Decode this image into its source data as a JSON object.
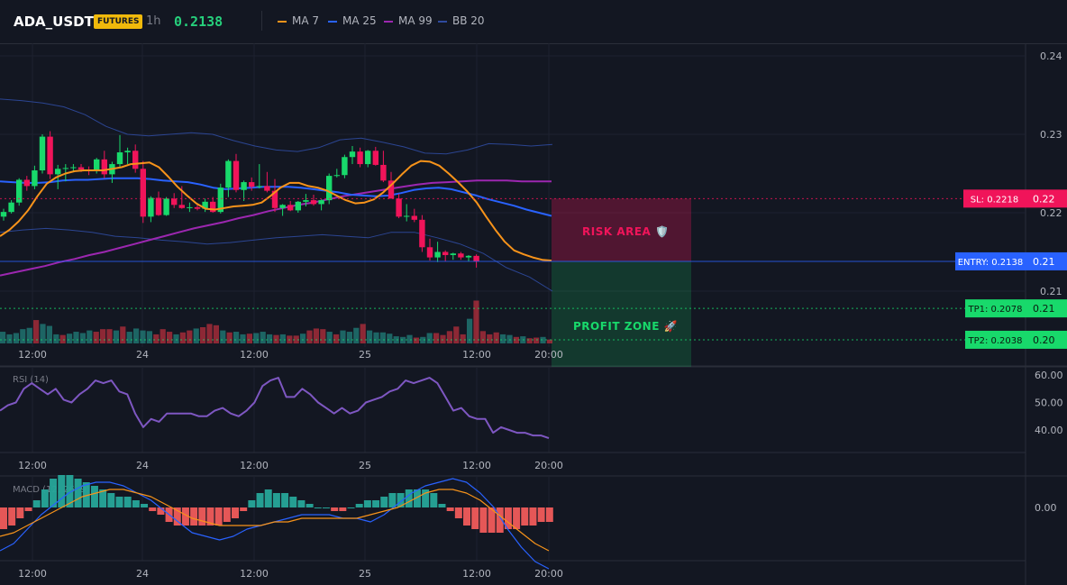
{
  "header": {
    "symbol": "ADA_USDT",
    "badge": "FUTURES",
    "timeframe": "1h",
    "price": "0.2138",
    "legend": [
      {
        "label": "MA 7",
        "color": "#f7931a"
      },
      {
        "label": "MA 25",
        "color": "#2962ff"
      },
      {
        "label": "MA 99",
        "color": "#9c27b0"
      },
      {
        "label": "BB 20",
        "color": "#2f4a9e"
      }
    ]
  },
  "colors": {
    "up": "#26a69a",
    "up_bright": "#18d96b",
    "down": "#f23645",
    "down_bright": "#f0145a",
    "background": "#131722"
  },
  "chart_data": [
    {
      "type": "candlestick",
      "title": "ADA_USDT 1h",
      "x_ticks": [
        "12:00",
        "24",
        "12:00",
        "25",
        "12:00",
        "20:00"
      ],
      "y_ticks": [
        "0.24",
        "0.23",
        "0.22",
        "0.21"
      ],
      "ylim": [
        0.2038,
        0.2417
      ],
      "candles_ohlc": [
        [
          0.2195,
          0.2205,
          0.219,
          0.2201
        ],
        [
          0.2201,
          0.2216,
          0.2199,
          0.2213
        ],
        [
          0.2213,
          0.2244,
          0.2209,
          0.2242
        ],
        [
          0.2242,
          0.2247,
          0.2228,
          0.2234
        ],
        [
          0.2234,
          0.226,
          0.223,
          0.2254
        ],
        [
          0.2254,
          0.23,
          0.225,
          0.2297
        ],
        [
          0.2297,
          0.2304,
          0.2243,
          0.2249
        ],
        [
          0.2249,
          0.2261,
          0.223,
          0.2256
        ],
        [
          0.2256,
          0.2262,
          0.224,
          0.2257
        ],
        [
          0.2257,
          0.2262,
          0.2252,
          0.2258
        ],
        [
          0.2258,
          0.2262,
          0.2252,
          0.2255
        ],
        [
          0.2255,
          0.2259,
          0.2248,
          0.2253
        ],
        [
          0.2253,
          0.227,
          0.225,
          0.2268
        ],
        [
          0.2268,
          0.2279,
          0.2244,
          0.2249
        ],
        [
          0.2249,
          0.2265,
          0.2238,
          0.2262
        ],
        [
          0.2262,
          0.2299,
          0.2257,
          0.2277
        ],
        [
          0.2277,
          0.2283,
          0.2262,
          0.2279
        ],
        [
          0.2279,
          0.2287,
          0.2251,
          0.2256
        ],
        [
          0.2256,
          0.2266,
          0.2187,
          0.2195
        ],
        [
          0.2195,
          0.2221,
          0.2188,
          0.2219
        ],
        [
          0.2219,
          0.2227,
          0.2196,
          0.2197
        ],
        [
          0.2197,
          0.222,
          0.2196,
          0.2218
        ],
        [
          0.2218,
          0.2225,
          0.2206,
          0.221
        ],
        [
          0.221,
          0.2234,
          0.2205,
          0.2206
        ],
        [
          0.2206,
          0.2213,
          0.2201,
          0.2207
        ],
        [
          0.2207,
          0.2212,
          0.2203,
          0.2205
        ],
        [
          0.2205,
          0.2218,
          0.2201,
          0.2214
        ],
        [
          0.2214,
          0.222,
          0.22,
          0.2201
        ],
        [
          0.2201,
          0.2237,
          0.2199,
          0.2232
        ],
        [
          0.2232,
          0.2268,
          0.222,
          0.2266
        ],
        [
          0.2266,
          0.2275,
          0.2226,
          0.2229
        ],
        [
          0.2229,
          0.2241,
          0.2215,
          0.2239
        ],
        [
          0.2239,
          0.2245,
          0.2228,
          0.2233
        ],
        [
          0.2233,
          0.2262,
          0.2231,
          0.2234
        ],
        [
          0.2234,
          0.2252,
          0.2226,
          0.2228
        ],
        [
          0.2228,
          0.2243,
          0.2201,
          0.2206
        ],
        [
          0.2206,
          0.2211,
          0.2196,
          0.221
        ],
        [
          0.221,
          0.2215,
          0.2202,
          0.2203
        ],
        [
          0.2203,
          0.2215,
          0.22,
          0.2214
        ],
        [
          0.2214,
          0.2224,
          0.2208,
          0.2216
        ],
        [
          0.2216,
          0.2223,
          0.2209,
          0.2211
        ],
        [
          0.2211,
          0.2217,
          0.2203,
          0.2216
        ],
        [
          0.2216,
          0.225,
          0.2211,
          0.2247
        ],
        [
          0.2247,
          0.2256,
          0.2245,
          0.2248
        ],
        [
          0.2248,
          0.2274,
          0.2244,
          0.2271
        ],
        [
          0.2271,
          0.2285,
          0.2262,
          0.2278
        ],
        [
          0.2278,
          0.2283,
          0.2258,
          0.2262
        ],
        [
          0.2262,
          0.228,
          0.2258,
          0.2279
        ],
        [
          0.2279,
          0.2284,
          0.226,
          0.2261
        ],
        [
          0.2261,
          0.2279,
          0.2239,
          0.2241
        ],
        [
          0.2241,
          0.2252,
          0.223,
          0.2218
        ],
        [
          0.2218,
          0.2224,
          0.2193,
          0.2195
        ],
        [
          0.2195,
          0.2211,
          0.2189,
          0.2196
        ],
        [
          0.2196,
          0.2205,
          0.2188,
          0.2191
        ],
        [
          0.2191,
          0.2197,
          0.215,
          0.2156
        ],
        [
          0.2156,
          0.2167,
          0.2139,
          0.2143
        ],
        [
          0.2143,
          0.2163,
          0.2137,
          0.215
        ],
        [
          0.215,
          0.2152,
          0.2138,
          0.2146
        ],
        [
          0.2146,
          0.2149,
          0.214,
          0.2148
        ],
        [
          0.2148,
          0.215,
          0.214,
          0.2143
        ],
        [
          0.2143,
          0.2146,
          0.2138,
          0.2145
        ],
        [
          0.2145,
          0.2147,
          0.213,
          0.2138
        ]
      ],
      "ma7": [
        0.217,
        0.2178,
        0.2189,
        0.2203,
        0.2221,
        0.2237,
        0.2245,
        0.225,
        0.2253,
        0.2254,
        0.2254,
        0.2254,
        0.2256,
        0.2258,
        0.2262,
        0.2263,
        0.2264,
        0.2258,
        0.2246,
        0.2233,
        0.2222,
        0.2212,
        0.2205,
        0.2204,
        0.2206,
        0.2208,
        0.2209,
        0.221,
        0.2213,
        0.2222,
        0.2232,
        0.2238,
        0.2238,
        0.2234,
        0.2232,
        0.2228,
        0.2222,
        0.2216,
        0.2212,
        0.2213,
        0.2217,
        0.2226,
        0.2237,
        0.2249,
        0.226,
        0.2266,
        0.2265,
        0.226,
        0.225,
        0.2239,
        0.2227,
        0.2213,
        0.2195,
        0.2178,
        0.2163,
        0.2152,
        0.2147,
        0.2143,
        0.214,
        0.2139
      ],
      "ma25": [
        0.224,
        0.2239,
        0.2238,
        0.2238,
        0.2239,
        0.2241,
        0.2242,
        0.2242,
        0.2243,
        0.2244,
        0.2244,
        0.2244,
        0.2243,
        0.2241,
        0.224,
        0.2239,
        0.2236,
        0.2232,
        0.223,
        0.2231,
        0.2232,
        0.2233,
        0.2233,
        0.2233,
        0.2232,
        0.223,
        0.2228,
        0.2226,
        0.2223,
        0.2222,
        0.2221,
        0.2222,
        0.2225,
        0.2229,
        0.2231,
        0.2232,
        0.223,
        0.2226,
        0.2222,
        0.2217,
        0.2213,
        0.2209,
        0.2204,
        0.22,
        0.2196
      ],
      "ma99": [
        0.212,
        0.2124,
        0.2128,
        0.2132,
        0.2137,
        0.2141,
        0.2146,
        0.215,
        0.2155,
        0.216,
        0.2165,
        0.217,
        0.2175,
        0.218,
        0.2184,
        0.2188,
        0.2193,
        0.2197,
        0.2202,
        0.2206,
        0.221,
        0.2213,
        0.2217,
        0.2221,
        0.2224,
        0.2227,
        0.223,
        0.2233,
        0.2236,
        0.2238,
        0.2239,
        0.224,
        0.2241,
        0.2241,
        0.2241,
        0.224,
        0.224,
        0.224
      ],
      "bb_upper": [
        0.2345,
        0.2343,
        0.234,
        0.2335,
        0.2325,
        0.231,
        0.23,
        0.2298,
        0.23,
        0.2302,
        0.23,
        0.2292,
        0.2285,
        0.228,
        0.2278,
        0.2283,
        0.2293,
        0.2295,
        0.229,
        0.2284,
        0.2276,
        0.2275,
        0.228,
        0.2288,
        0.2287,
        0.2285,
        0.2287
      ],
      "bb_lower": [
        0.2175,
        0.2178,
        0.218,
        0.2178,
        0.2175,
        0.217,
        0.2168,
        0.2165,
        0.2163,
        0.216,
        0.2162,
        0.2165,
        0.2168,
        0.217,
        0.2172,
        0.217,
        0.2168,
        0.2175,
        0.2175,
        0.2168,
        0.216,
        0.2148,
        0.213,
        0.2118,
        0.21
      ]
    },
    {
      "type": "bar",
      "title": "Volume",
      "values": [
        18,
        14,
        16,
        22,
        24,
        36,
        30,
        27,
        14,
        13,
        15,
        18,
        16,
        20,
        18,
        22,
        22,
        20,
        26,
        18,
        23,
        20,
        19,
        14,
        22,
        18,
        14,
        17,
        20,
        23,
        25,
        30,
        28,
        20,
        17,
        18,
        14,
        15,
        16,
        18,
        14,
        13,
        14,
        12,
        12,
        15,
        20,
        23,
        22,
        18,
        14,
        20,
        18,
        24,
        30,
        20,
        17,
        17,
        15,
        11,
        10,
        13,
        9,
        10,
        16,
        16,
        13,
        19,
        26,
        14,
        38,
        66,
        19,
        14,
        17,
        14,
        13,
        10,
        11,
        8,
        9,
        10,
        6
      ]
    },
    {
      "type": "line",
      "title": "RSI (14)",
      "y_ticks": [
        "60.00",
        "50.00",
        "40.00"
      ],
      "ylim": [
        30,
        65
      ],
      "values": [
        47,
        49,
        50,
        55,
        57,
        55,
        53,
        55,
        51,
        50,
        53,
        55,
        58,
        57,
        58,
        54,
        53,
        46,
        41,
        44,
        43,
        46,
        46,
        46,
        46,
        45,
        45,
        47,
        48,
        46,
        45,
        47,
        50,
        56,
        58,
        59,
        52,
        52,
        55,
        53,
        50,
        48,
        46,
        48,
        46,
        47,
        50,
        51,
        52,
        54,
        55,
        58,
        57,
        58,
        59,
        57,
        52,
        47,
        48,
        45,
        44,
        44,
        39,
        41,
        40,
        39,
        39,
        38,
        38,
        37
      ]
    },
    {
      "type": "bar",
      "title": "MACD (12, 26, 9)",
      "y_ticks": [
        "0.00"
      ],
      "ylim": [
        -0.003,
        0.0025
      ],
      "histogram": [
        -0.0006,
        -0.0005,
        -0.0003,
        -0.0001,
        0.0002,
        0.0005,
        0.0008,
        0.0009,
        0.0009,
        0.0008,
        0.0007,
        0.0006,
        0.0005,
        0.0004,
        0.0003,
        0.0003,
        0.0002,
        0.0001,
        -0.0001,
        -0.0002,
        -0.0004,
        -0.0005,
        -0.0005,
        -0.0005,
        -0.0005,
        -0.0005,
        -0.0005,
        -0.0004,
        -0.0003,
        -0.0001,
        0.0002,
        0.0004,
        0.0005,
        0.0004,
        0.0004,
        0.0003,
        0.0002,
        0.0001,
        0.0,
        0.0,
        -0.0001,
        -0.0001,
        0.0,
        0.0001,
        0.0002,
        0.0002,
        0.0003,
        0.0004,
        0.0004,
        0.0005,
        0.0005,
        0.0005,
        0.0004,
        0.0001,
        -0.0001,
        -0.0003,
        -0.0005,
        -0.0006,
        -0.0007,
        -0.0007,
        -0.0007,
        -0.0006,
        -0.0006,
        -0.0005,
        -0.0005,
        -0.0004,
        -0.0004
      ],
      "macd_line": [
        -0.0012,
        -0.001,
        -0.0006,
        -0.0002,
        0.0001,
        0.0004,
        0.0006,
        0.0007,
        0.0007,
        0.0006,
        0.0004,
        0.0002,
        -0.0001,
        -0.0004,
        -0.0007,
        -0.0008,
        -0.0009,
        -0.0008,
        -0.0006,
        -0.0005,
        -0.0004,
        -0.0003,
        -0.0002,
        -0.0002,
        -0.0002,
        -0.0003,
        -0.0003,
        -0.0004,
        -0.0002,
        0.0001,
        0.0004,
        0.0006,
        0.0007,
        0.0008,
        0.0007,
        0.0004,
        0.0,
        -0.0006,
        -0.0011,
        -0.0015,
        -0.0017
      ],
      "signal_line": [
        -0.0008,
        -0.0007,
        -0.0005,
        -0.0003,
        -0.0001,
        0.0001,
        0.0003,
        0.0004,
        0.0005,
        0.0005,
        0.0004,
        0.0003,
        0.0001,
        -0.0001,
        -0.0003,
        -0.0004,
        -0.0005,
        -0.0005,
        -0.0005,
        -0.0005,
        -0.0004,
        -0.0004,
        -0.0003,
        -0.0003,
        -0.0003,
        -0.0003,
        -0.0003,
        -0.0002,
        -0.0001,
        0.0,
        0.0002,
        0.0004,
        0.0005,
        0.0005,
        0.0004,
        0.0002,
        -0.0001,
        -0.0004,
        -0.0007,
        -0.001,
        -0.0012
      ]
    }
  ],
  "levels": [
    {
      "label": "SL: 0.2218",
      "axis": "0.22",
      "value": 0.2218,
      "color": "#f0145a"
    },
    {
      "label": "ENTRY: 0.2138",
      "axis": "0.21",
      "value": 0.2138,
      "color": "#2962ff"
    },
    {
      "label": "TP1: 0.2078",
      "axis": "0.21",
      "value": 0.2078,
      "color": "#18d96b"
    },
    {
      "label": "TP2: 0.2038",
      "axis": "0.20",
      "value": 0.2038,
      "color": "#18d96b"
    }
  ],
  "zones": {
    "risk_label": "RISK AREA 🛡️",
    "profit_label": "PROFIT ZONE 🚀"
  }
}
